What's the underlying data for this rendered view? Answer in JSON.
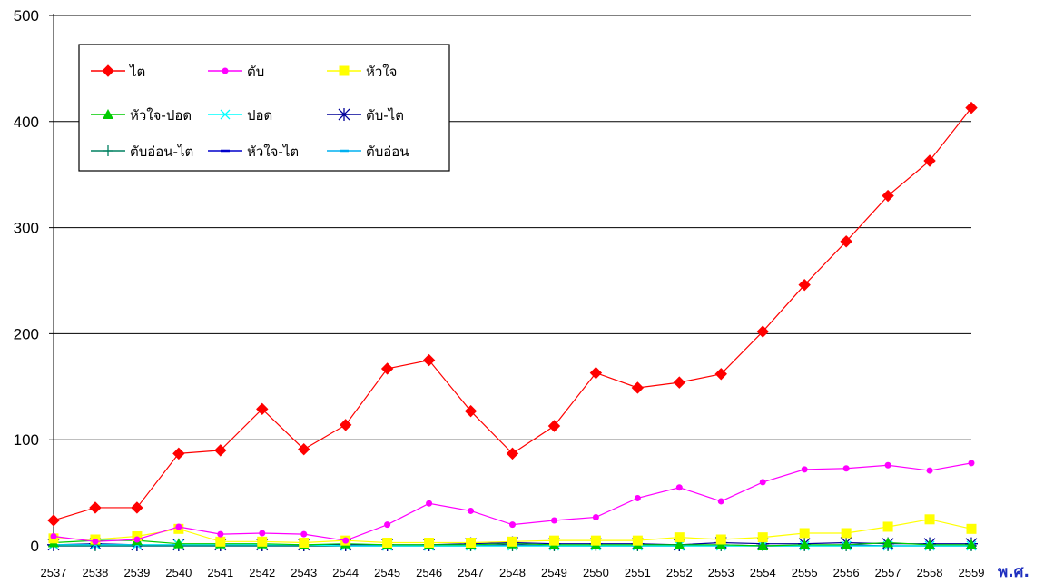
{
  "chart_data": {
    "type": "line",
    "title": "",
    "xlabel": "พ.ศ.",
    "ylabel": "",
    "ylim": [
      0,
      500
    ],
    "yticks": [
      0,
      100,
      200,
      300,
      400,
      500
    ],
    "grid": true,
    "legend_position": "top-left",
    "x": [
      "2537",
      "2538",
      "2539",
      "2540",
      "2541",
      "2542",
      "2543",
      "2544",
      "2545",
      "2546",
      "2547",
      "2548",
      "2549",
      "2550",
      "2551",
      "2552",
      "2553",
      "2554",
      "2555",
      "2556",
      "2557",
      "2558",
      "2559"
    ],
    "series": [
      {
        "name": "ไต",
        "color": "#ff0000",
        "marker": "diamond",
        "values": [
          24,
          36,
          36,
          87,
          90,
          129,
          91,
          114,
          167,
          175,
          127,
          87,
          113,
          163,
          149,
          154,
          162,
          202,
          246,
          287,
          330,
          363,
          413
        ]
      },
      {
        "name": "ตับ",
        "color": "#ff00ff",
        "marker": "circle",
        "values": [
          9,
          4,
          6,
          18,
          11,
          12,
          11,
          5,
          20,
          40,
          33,
          20,
          24,
          27,
          45,
          55,
          42,
          60,
          72,
          73,
          76,
          71,
          78
        ]
      },
      {
        "name": "หัวใจ",
        "color": "#ffff00",
        "marker": "square",
        "values": [
          7,
          6,
          9,
          16,
          4,
          4,
          3,
          5,
          3,
          3,
          3,
          4,
          5,
          5,
          5,
          8,
          6,
          8,
          12,
          12,
          18,
          25,
          16
        ]
      },
      {
        "name": "หัวใจ-ปอด",
        "color": "#00cc00",
        "marker": "triangle",
        "values": [
          3,
          5,
          5,
          2,
          2,
          2,
          1,
          2,
          1,
          1,
          1,
          2,
          1,
          1,
          1,
          1,
          1,
          0,
          1,
          1,
          3,
          1,
          1
        ]
      },
      {
        "name": "ปอด",
        "color": "#00ffff",
        "marker": "x",
        "values": [
          1,
          1,
          1,
          1,
          1,
          1,
          1,
          0,
          0,
          0,
          0,
          0,
          0,
          0,
          0,
          0,
          0,
          0,
          0,
          0,
          0,
          0,
          0
        ]
      },
      {
        "name": "ตับ-ไต",
        "color": "#000099",
        "marker": "asterisk",
        "values": [
          1,
          2,
          1,
          1,
          1,
          1,
          1,
          1,
          1,
          1,
          2,
          3,
          2,
          2,
          2,
          1,
          3,
          2,
          2,
          3,
          2,
          2,
          2
        ]
      },
      {
        "name": "ตับอ่อน-ไต",
        "color": "#008060",
        "marker": "plus",
        "values": [
          0,
          0,
          0,
          0,
          0,
          0,
          0,
          0,
          0,
          0,
          0,
          0,
          0,
          0,
          0,
          0,
          0,
          0,
          0,
          0,
          0,
          0,
          0
        ]
      },
      {
        "name": "หัวใจ-ไต",
        "color": "#0000cc",
        "marker": "dash",
        "values": [
          0,
          0,
          0,
          0,
          0,
          0,
          0,
          0,
          0,
          0,
          0,
          1,
          0,
          0,
          0,
          0,
          1,
          0,
          0,
          1,
          0,
          0,
          0
        ]
      },
      {
        "name": "ตับอ่อน",
        "color": "#00b0f0",
        "marker": "dash",
        "values": [
          0,
          0,
          0,
          0,
          0,
          0,
          0,
          0,
          0,
          0,
          0,
          0,
          0,
          0,
          0,
          0,
          0,
          0,
          0,
          0,
          0,
          0,
          0
        ]
      }
    ]
  }
}
